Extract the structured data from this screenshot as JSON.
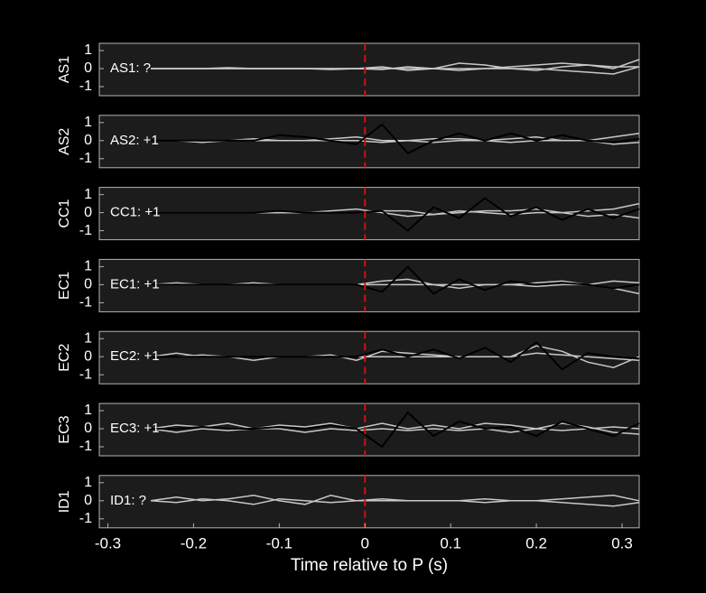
{
  "chart_data": [
    {
      "type": "line",
      "ylabel": "AS1",
      "annotation": "AS1: ?",
      "annotation_color": "#9a9a9a",
      "vline": 0,
      "x": [
        -0.25,
        -0.22,
        -0.19,
        -0.16,
        -0.13,
        -0.1,
        -0.07,
        -0.04,
        -0.01,
        0.02,
        0.05,
        0.08,
        0.11,
        0.14,
        0.17,
        0.2,
        0.23,
        0.26,
        0.29,
        0.32
      ],
      "xlim": [
        -0.31,
        0.32
      ],
      "ylim": [
        -1.5,
        1.4
      ],
      "yticks": [
        -1,
        0,
        1
      ],
      "series": [
        {
          "color": "#c8c8c8",
          "values": [
            0,
            0,
            0,
            0.05,
            0,
            0,
            0,
            -0.05,
            0,
            0.1,
            -0.1,
            0,
            0.3,
            0.2,
            0,
            -0.1,
            0.1,
            0.2,
            0,
            0.5
          ]
        },
        {
          "color": "#c8c8c8",
          "values": [
            0,
            0,
            0,
            0,
            0,
            0,
            0,
            0,
            0,
            -0.05,
            0.1,
            0,
            -0.1,
            0,
            0.1,
            0.2,
            0.3,
            0.2,
            0.1,
            0.1
          ]
        },
        {
          "color": "#c8c8c8",
          "values": [
            0,
            0,
            0,
            0,
            0,
            0,
            0,
            0,
            0,
            0,
            0,
            0,
            0,
            0,
            0,
            0,
            -0.1,
            -0.2,
            -0.3,
            0.1
          ]
        }
      ]
    },
    {
      "type": "line",
      "ylabel": "AS2",
      "annotation": "AS2: +1",
      "annotation_color": "#c81818",
      "vline": 0,
      "x": [
        -0.25,
        -0.22,
        -0.19,
        -0.16,
        -0.13,
        -0.1,
        -0.07,
        -0.04,
        -0.01,
        0.02,
        0.05,
        0.08,
        0.11,
        0.14,
        0.17,
        0.2,
        0.23,
        0.26,
        0.29,
        0.32
      ],
      "xlim": [
        -0.31,
        0.32
      ],
      "ylim": [
        -1.5,
        1.4
      ],
      "yticks": [
        -1,
        0,
        1
      ],
      "series": [
        {
          "color": "#c8c8c8",
          "values": [
            0,
            0,
            -0.1,
            0,
            0.1,
            0,
            0,
            0.1,
            0.2,
            0,
            0,
            0.1,
            0.1,
            0,
            0.1,
            0.2,
            0,
            0,
            0.2,
            0.4
          ]
        },
        {
          "color": "#c8c8c8",
          "values": [
            0,
            0,
            0,
            0,
            0,
            0,
            0,
            0,
            0,
            -0.1,
            0,
            -0.1,
            0,
            0,
            -0.1,
            0,
            0,
            0,
            -0.2,
            -0.1
          ]
        },
        {
          "color": "#000000",
          "values": [
            0,
            0,
            0,
            0,
            0,
            0.3,
            0.2,
            0,
            -0.2,
            0.9,
            -0.7,
            0,
            0.4,
            0,
            0.4,
            0,
            0.3,
            0,
            -0.1,
            0.1
          ]
        }
      ]
    },
    {
      "type": "line",
      "ylabel": "CC1",
      "annotation": "CC1: +1",
      "annotation_color": "#c81818",
      "vline": 0,
      "x": [
        -0.25,
        -0.22,
        -0.19,
        -0.16,
        -0.13,
        -0.1,
        -0.07,
        -0.04,
        -0.01,
        0.02,
        0.05,
        0.08,
        0.11,
        0.14,
        0.17,
        0.2,
        0.23,
        0.26,
        0.29,
        0.32
      ],
      "xlim": [
        -0.31,
        0.32
      ],
      "ylim": [
        -1.5,
        1.4
      ],
      "yticks": [
        -1,
        0,
        1
      ],
      "series": [
        {
          "color": "#c8c8c8",
          "values": [
            0,
            0,
            0,
            0,
            0,
            0,
            0,
            0.1,
            0.2,
            0,
            -0.2,
            -0.1,
            0,
            0.1,
            0.1,
            0.2,
            0,
            0.1,
            0.2,
            0.5
          ]
        },
        {
          "color": "#c8c8c8",
          "values": [
            0,
            0,
            0,
            0,
            0,
            0,
            0,
            0,
            0,
            0.1,
            0.1,
            -0.1,
            0.1,
            0,
            -0.1,
            0,
            0,
            -0.2,
            -0.1,
            -0.3
          ]
        },
        {
          "color": "#000000",
          "values": [
            0,
            0,
            0,
            0,
            0,
            0.1,
            0,
            0,
            0,
            0.1,
            -1,
            0.3,
            -0.3,
            0.8,
            -0.2,
            0.3,
            -0.4,
            0.2,
            -0.3,
            0.2
          ]
        }
      ]
    },
    {
      "type": "line",
      "ylabel": "EC1",
      "annotation": "EC1: +1",
      "annotation_color": "#c81818",
      "vline": 0,
      "x": [
        -0.25,
        -0.22,
        -0.19,
        -0.16,
        -0.13,
        -0.1,
        -0.07,
        -0.04,
        -0.01,
        0.02,
        0.05,
        0.08,
        0.11,
        0.14,
        0.17,
        0.2,
        0.23,
        0.26,
        0.29,
        0.32
      ],
      "xlim": [
        -0.31,
        0.32
      ],
      "ylim": [
        -1.5,
        1.4
      ],
      "yticks": [
        -1,
        0,
        1
      ],
      "series": [
        {
          "color": "#c8c8c8",
          "values": [
            0,
            0.1,
            0,
            0,
            0.1,
            0,
            0,
            0,
            0,
            0.2,
            0.3,
            0,
            -0.2,
            0,
            0,
            0.1,
            0.2,
            0,
            -0.2,
            -0.5
          ]
        },
        {
          "color": "#c8c8c8",
          "values": [
            0,
            0,
            0,
            0,
            0,
            0,
            0,
            0,
            0,
            0,
            0,
            0,
            0,
            0,
            0,
            -0.1,
            0,
            0,
            0.2,
            0.1
          ]
        },
        {
          "color": "#000000",
          "values": [
            0,
            0,
            0,
            0,
            0,
            0,
            0,
            0,
            0,
            -0.4,
            1,
            -0.5,
            0.3,
            -0.3,
            0.2,
            0,
            0.1,
            0,
            -0.2,
            0
          ]
        }
      ]
    },
    {
      "type": "line",
      "ylabel": "EC2",
      "annotation": "EC2: +1",
      "annotation_color": "#c81818",
      "vline": 0,
      "x": [
        -0.25,
        -0.22,
        -0.19,
        -0.16,
        -0.13,
        -0.1,
        -0.07,
        -0.04,
        -0.01,
        0.02,
        0.05,
        0.08,
        0.11,
        0.14,
        0.17,
        0.2,
        0.23,
        0.26,
        0.29,
        0.32
      ],
      "xlim": [
        -0.31,
        0.32
      ],
      "ylim": [
        -1.5,
        1.4
      ],
      "yticks": [
        -1,
        0,
        1
      ],
      "series": [
        {
          "color": "#c8c8c8",
          "values": [
            0,
            0.2,
            0,
            0,
            -0.2,
            0,
            0,
            0.1,
            -0.2,
            0.3,
            0.2,
            0.1,
            0,
            0,
            0,
            0.2,
            0.1,
            0,
            -0.1,
            -0.2
          ]
        },
        {
          "color": "#c8c8c8",
          "values": [
            0,
            0,
            0.1,
            0,
            0,
            0,
            0,
            0,
            0,
            0,
            0,
            0,
            0,
            0,
            0,
            0.6,
            0.3,
            -0.3,
            -0.6,
            0
          ]
        },
        {
          "color": "#000000",
          "values": [
            0,
            0,
            0,
            0,
            0,
            0,
            0,
            0,
            0,
            0.4,
            0,
            0.4,
            -0.1,
            0.5,
            -0.3,
            0.8,
            -0.7,
            0.2,
            0,
            -0.1
          ]
        }
      ]
    },
    {
      "type": "line",
      "ylabel": "EC3",
      "annotation": "EC3: +1",
      "annotation_color": "#c81818",
      "vline": 0,
      "x": [
        -0.25,
        -0.22,
        -0.19,
        -0.16,
        -0.13,
        -0.1,
        -0.07,
        -0.04,
        -0.01,
        0.02,
        0.05,
        0.08,
        0.11,
        0.14,
        0.17,
        0.2,
        0.23,
        0.26,
        0.29,
        0.32
      ],
      "xlim": [
        -0.31,
        0.32
      ],
      "ylim": [
        -1.5,
        1.4
      ],
      "yticks": [
        -1,
        0,
        1
      ],
      "series": [
        {
          "color": "#c8c8c8",
          "values": [
            0,
            0.2,
            0.1,
            0.3,
            0,
            0.2,
            0.1,
            0.3,
            0,
            0.3,
            0,
            0.2,
            0,
            0.3,
            0.2,
            0,
            0.3,
            0.1,
            -0.2,
            -0.3
          ]
        },
        {
          "color": "#c8c8c8",
          "values": [
            0,
            -0.2,
            0,
            -0.1,
            0,
            0,
            -0.2,
            0,
            -0.1,
            0,
            -0.1,
            0,
            -0.1,
            0,
            -0.2,
            0,
            -0.1,
            0,
            0.1,
            0
          ]
        },
        {
          "color": "#000000",
          "values": [
            0,
            0,
            0.1,
            0,
            0,
            0.1,
            0,
            0.2,
            0,
            -1,
            0.9,
            -0.4,
            0.4,
            0,
            0.1,
            -0.4,
            0.4,
            0,
            -0.4,
            0.3
          ]
        }
      ]
    },
    {
      "type": "line",
      "ylabel": "ID1",
      "annotation": "ID1: ?",
      "annotation_color": "#9a9a9a",
      "vline": 0,
      "x": [
        -0.25,
        -0.22,
        -0.19,
        -0.16,
        -0.13,
        -0.1,
        -0.07,
        -0.04,
        -0.01,
        0.02,
        0.05,
        0.08,
        0.11,
        0.14,
        0.17,
        0.2,
        0.23,
        0.26,
        0.29,
        0.32
      ],
      "xlim": [
        -0.31,
        0.32
      ],
      "ylim": [
        -1.5,
        1.4
      ],
      "yticks": [
        -1,
        0,
        1
      ],
      "xticks": [
        -0.3,
        -0.2,
        -0.1,
        0,
        0.1,
        0.2,
        0.3
      ],
      "xlabel": "Time relative to P (s)",
      "series": [
        {
          "color": "#c8c8c8",
          "values": [
            0,
            0.2,
            0,
            0.1,
            0.3,
            0,
            -0.2,
            0.3,
            0,
            0.1,
            0,
            0,
            0,
            -0.1,
            0,
            0,
            0.1,
            0.2,
            0.3,
            0
          ]
        },
        {
          "color": "#c8c8c8",
          "values": [
            0,
            -0.1,
            0.1,
            0,
            -0.2,
            0.1,
            0,
            -0.1,
            0,
            0,
            0,
            0,
            0,
            0.1,
            0,
            0,
            -0.1,
            -0.2,
            -0.3,
            -0.1
          ]
        }
      ]
    }
  ]
}
